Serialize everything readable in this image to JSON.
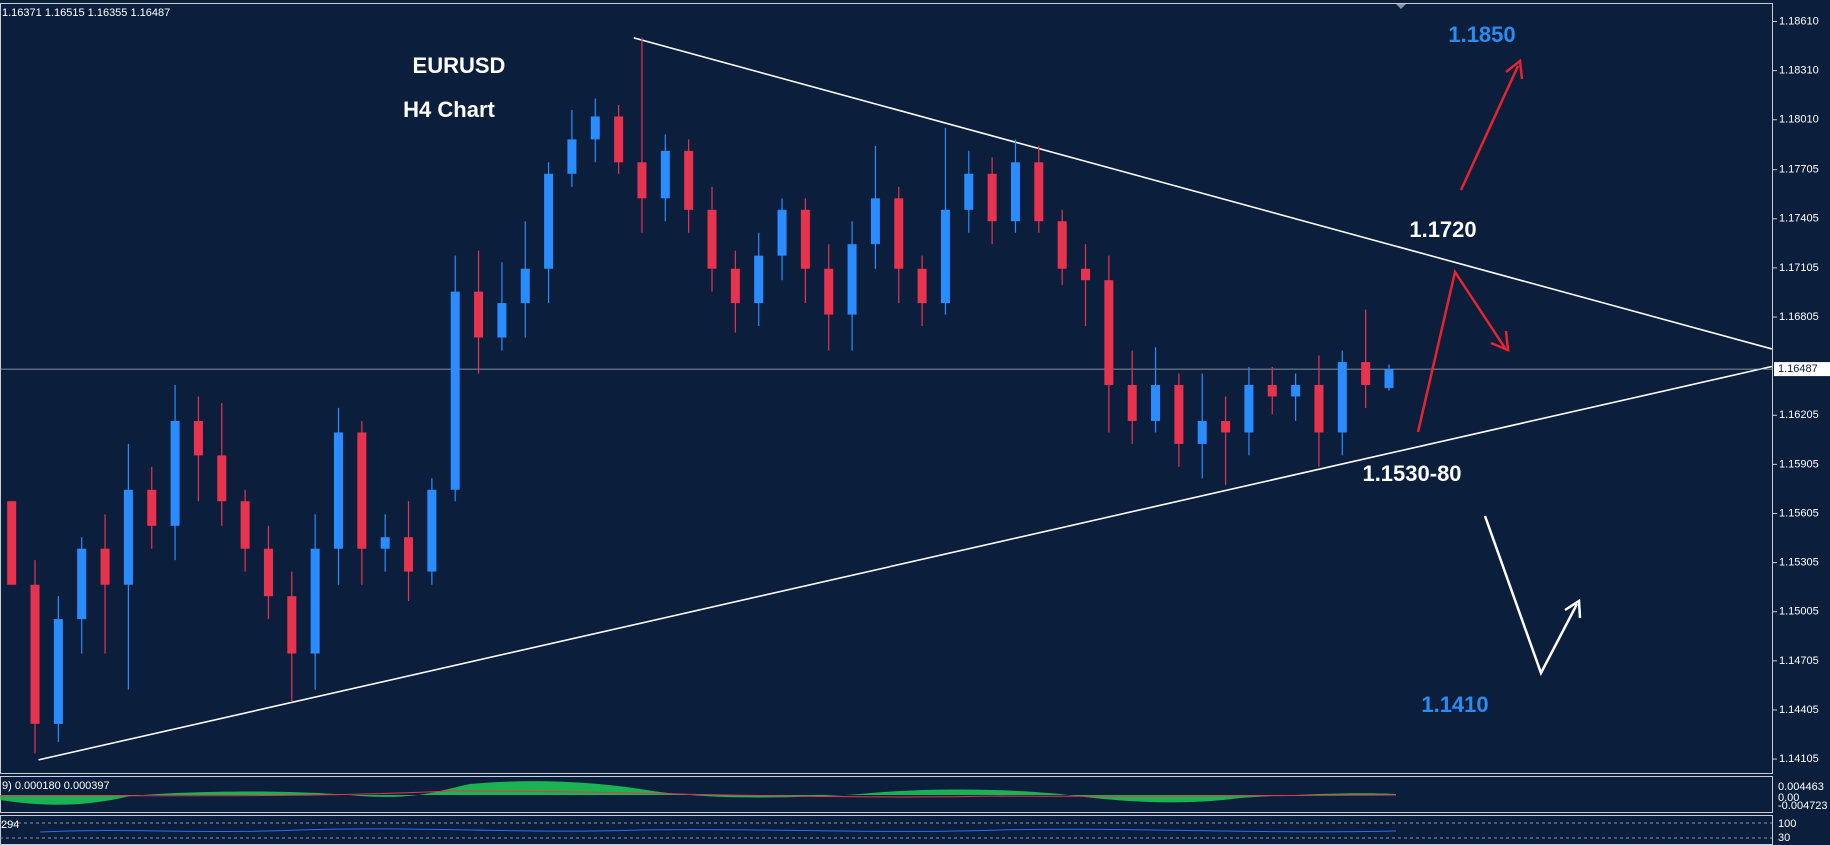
{
  "chart_data": {
    "type": "candlestick",
    "title": "EURUSD",
    "subtitle": "H4 Chart",
    "x": [
      0,
      1,
      2,
      3,
      4,
      5,
      6,
      7,
      8,
      9,
      10,
      11,
      12,
      13,
      14,
      15,
      16,
      17,
      18,
      19,
      20,
      21,
      22,
      23,
      24,
      25,
      26,
      27,
      28,
      29,
      30,
      31,
      32,
      33,
      34,
      35,
      36,
      37,
      38,
      39,
      40,
      41,
      42,
      43,
      44,
      45,
      46,
      47,
      48,
      49,
      50,
      51,
      52,
      53,
      54,
      55,
      56,
      57,
      58,
      59
    ],
    "open": [
      1.1568,
      1.1517,
      1.1432,
      1.1496,
      1.1539,
      1.1517,
      1.1575,
      1.1553,
      1.1617,
      1.1596,
      1.1568,
      1.1539,
      1.151,
      1.1475,
      1.1539,
      1.161,
      1.1539,
      1.1546,
      1.1525,
      1.1575,
      1.1696,
      1.1668,
      1.1689,
      1.171,
      1.1768,
      1.1789,
      1.1803,
      1.1775,
      1.1753,
      1.1782,
      1.1746,
      1.171,
      1.1689,
      1.1718,
      1.1746,
      1.171,
      1.1682,
      1.1725,
      1.1753,
      1.171,
      1.1689,
      1.1746,
      1.1768,
      1.1739,
      1.1775,
      1.1739,
      1.171,
      1.1703,
      1.1639,
      1.1617,
      1.1639,
      1.1603,
      1.1617,
      1.161,
      1.1639,
      1.1632,
      1.1639,
      1.161,
      1.1653,
      1.16371
    ],
    "high": [
      1.1568,
      1.1532,
      1.151,
      1.1546,
      1.156,
      1.1603,
      1.1589,
      1.1639,
      1.1632,
      1.1628,
      1.1575,
      1.1553,
      1.1525,
      1.156,
      1.1625,
      1.1617,
      1.156,
      1.1568,
      1.1582,
      1.1718,
      1.1721,
      1.1714,
      1.1739,
      1.1775,
      1.1807,
      1.1814,
      1.181,
      1.1851,
      1.1792,
      1.1789,
      1.176,
      1.1721,
      1.1732,
      1.1753,
      1.1753,
      1.1725,
      1.1739,
      1.1785,
      1.176,
      1.1718,
      1.1796,
      1.1782,
      1.1778,
      1.1789,
      1.1785,
      1.1746,
      1.1725,
      1.1718,
      1.166,
      1.1662,
      1.1646,
      1.1646,
      1.1632,
      1.165,
      1.165,
      1.1646,
      1.1657,
      1.166,
      1.1685,
      1.16515
    ],
    "low": [
      1.1517,
      1.1414,
      1.1421,
      1.1475,
      1.1475,
      1.1453,
      1.1539,
      1.1532,
      1.1568,
      1.1553,
      1.1525,
      1.1496,
      1.1446,
      1.1453,
      1.1517,
      1.1517,
      1.1525,
      1.1507,
      1.1517,
      1.1568,
      1.1646,
      1.166,
      1.1668,
      1.1689,
      1.176,
      1.1775,
      1.1768,
      1.1732,
      1.1739,
      1.1732,
      1.1696,
      1.1671,
      1.1675,
      1.1703,
      1.1689,
      1.166,
      1.166,
      1.171,
      1.1689,
      1.1675,
      1.1682,
      1.1732,
      1.1725,
      1.1732,
      1.1732,
      1.17,
      1.1675,
      1.161,
      1.1603,
      1.161,
      1.1589,
      1.1582,
      1.1578,
      1.1596,
      1.1621,
      1.1617,
      1.1589,
      1.1596,
      1.1625,
      1.16355
    ],
    "close": [
      1.1517,
      1.1432,
      1.1496,
      1.1539,
      1.1517,
      1.1575,
      1.1553,
      1.1617,
      1.1596,
      1.1568,
      1.1539,
      1.151,
      1.1475,
      1.1539,
      1.161,
      1.1539,
      1.1546,
      1.1525,
      1.1575,
      1.1696,
      1.1668,
      1.1689,
      1.171,
      1.1768,
      1.1789,
      1.1803,
      1.1775,
      1.1753,
      1.1782,
      1.1746,
      1.171,
      1.1689,
      1.1718,
      1.1746,
      1.171,
      1.1682,
      1.1725,
      1.1753,
      1.171,
      1.1689,
      1.1746,
      1.1768,
      1.1739,
      1.1775,
      1.1739,
      1.171,
      1.1703,
      1.1639,
      1.1617,
      1.1639,
      1.1603,
      1.1617,
      1.161,
      1.1639,
      1.1632,
      1.1639,
      1.161,
      1.1653,
      1.1639,
      1.16487
    ],
    "colors": {
      "up": "#2b8cff",
      "down": "#e8334f"
    },
    "xlim": [
      -0.5,
      75.45
    ],
    "ylim": [
      1.1402,
      1.1872
    ],
    "yticks": [
      {
        "value": 1.1861,
        "label": "1.18610"
      },
      {
        "value": 1.1831,
        "label": "1.18310"
      },
      {
        "value": 1.1801,
        "label": "1.18010"
      },
      1.17705,
      1.17405,
      1.17105,
      1.16805,
      1.16205,
      1.15905,
      1.15605,
      1.15305,
      1.15005,
      1.14705,
      1.14405,
      1.14105
    ],
    "last_price": 1.16487,
    "trendlines": [
      {
        "x": [
          26.65,
          75.4
        ],
        "y": [
          1.1851,
          1.1661
        ]
      },
      {
        "x": [
          1.15,
          75.4
        ],
        "y": [
          1.141,
          1.16503
        ]
      }
    ],
    "annotations": [
      "1.1850",
      "1.1720",
      "1.1530-80",
      "1.1410"
    ]
  },
  "panels": {
    "macd": {
      "label": "9) 0.000180 0.000397",
      "ticks": [
        "0.004463",
        "0.00",
        "-0.004723"
      ]
    },
    "rsi": {
      "label": "294",
      "ticks": [
        "100",
        "30"
      ]
    }
  }
}
